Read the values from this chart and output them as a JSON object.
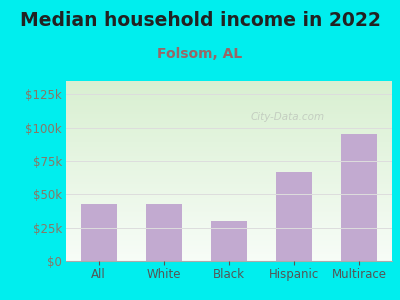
{
  "title": "Median household income in 2022",
  "subtitle": "Folsom, AL",
  "categories": [
    "All",
    "White",
    "Black",
    "Hispanic",
    "Multirace"
  ],
  "values": [
    43000,
    43000,
    30000,
    67000,
    95000
  ],
  "bar_color": "#c2aad0",
  "title_fontsize": 13.5,
  "subtitle_fontsize": 10,
  "subtitle_color": "#996666",
  "title_color": "#222222",
  "background_outer": "#00eeee",
  "yticks": [
    0,
    25000,
    50000,
    75000,
    100000,
    125000
  ],
  "ylim": [
    0,
    135000
  ],
  "ytick_color": "#887766",
  "xtick_color": "#555555",
  "grid_color": "#dddddd",
  "watermark": "City-Data.com"
}
